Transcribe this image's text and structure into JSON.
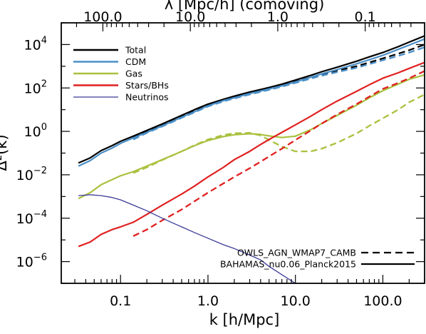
{
  "chart_data": {
    "type": "line",
    "title": "",
    "xlabel": "k [h/Mpc]",
    "ylabel": "Δ²(k)",
    "top_xlabel": "λ [Mpc/h] (comoving)",
    "x_scale": "log",
    "y_scale": "log",
    "xlim": [
      0.021,
      300
    ],
    "ylim": [
      1e-07,
      100000.0
    ],
    "x_ticks": [
      {
        "value": 0.1,
        "label": "0.1"
      },
      {
        "value": 1,
        "label": "1.0"
      },
      {
        "value": 10,
        "label": "10.0"
      },
      {
        "value": 100,
        "label": "100.0"
      }
    ],
    "y_ticks": [
      {
        "value": 1e-06,
        "base": "10",
        "exp": "−6"
      },
      {
        "value": 0.0001,
        "base": "10",
        "exp": "−4"
      },
      {
        "value": 0.01,
        "base": "10",
        "exp": "−2"
      },
      {
        "value": 1,
        "base": "10",
        "exp": "0"
      },
      {
        "value": 100,
        "base": "10",
        "exp": "2"
      },
      {
        "value": 10000,
        "base": "10",
        "exp": "4"
      }
    ],
    "top_ticks": [
      {
        "lambda": 100,
        "label": "100.0"
      },
      {
        "lambda": 10,
        "label": "10.0"
      },
      {
        "lambda": 1,
        "label": "1.0"
      },
      {
        "lambda": 0.1,
        "label": "0.1"
      }
    ],
    "grid": false,
    "legend_species_position": "top-left",
    "legend_linestyle_position": "bottom-right",
    "x": [
      0.033,
      0.045,
      0.06,
      0.08,
      0.1,
      0.14,
      0.2,
      0.3,
      0.5,
      0.7,
      1,
      1.5,
      2,
      3,
      4,
      5,
      7,
      10,
      15,
      20,
      30,
      50,
      70,
      100,
      150,
      200,
      300
    ],
    "series": [
      {
        "name": "Total",
        "color": "#000000",
        "solid": [
          0.035,
          0.06,
          0.13,
          0.22,
          0.35,
          0.6,
          1.1,
          2.2,
          5.5,
          10,
          18,
          30,
          42,
          65,
          85,
          105,
          150,
          230,
          380,
          560,
          900,
          1700,
          2700,
          4300,
          8000,
          13000,
          25000
        ],
        "dashed": [
          null,
          null,
          null,
          null,
          null,
          0.5,
          1.0,
          2.0,
          5.0,
          9,
          16,
          27,
          38,
          58,
          75,
          95,
          130,
          200,
          310,
          430,
          640,
          1000,
          1500,
          2300,
          3800,
          5500,
          10000
        ]
      },
      {
        "name": "CDM",
        "color": "#4a8fc8",
        "solid": [
          0.025,
          0.045,
          0.1,
          0.17,
          0.28,
          0.5,
          0.9,
          1.8,
          4.5,
          8,
          15,
          26,
          35,
          55,
          72,
          90,
          125,
          190,
          310,
          450,
          700,
          1300,
          2000,
          3200,
          6000,
          9500,
          18000
        ],
        "dashed": [
          null,
          null,
          null,
          null,
          null,
          0.42,
          0.85,
          1.7,
          4.2,
          7.5,
          14,
          24,
          33,
          50,
          66,
          82,
          115,
          170,
          270,
          370,
          540,
          850,
          1250,
          1900,
          3000,
          4300,
          7500
        ]
      },
      {
        "name": "Gas",
        "color": "#a9c13e",
        "solid": [
          0.0008,
          0.0015,
          0.0035,
          0.006,
          0.009,
          0.014,
          0.025,
          0.05,
          0.12,
          0.22,
          0.38,
          0.58,
          0.7,
          0.78,
          0.72,
          0.62,
          0.52,
          0.6,
          1.2,
          2.3,
          5.5,
          16,
          35,
          75,
          150,
          250,
          400
        ],
        "dashed": [
          null,
          null,
          null,
          null,
          null,
          0.012,
          0.022,
          0.048,
          0.12,
          0.23,
          0.42,
          0.68,
          0.82,
          0.85,
          0.65,
          0.4,
          0.2,
          0.12,
          0.12,
          0.16,
          0.3,
          0.8,
          1.8,
          4,
          10,
          22,
          50
        ]
      },
      {
        "name": "Stars/BHs",
        "color": "#e02020",
        "solid": [
          5e-06,
          8e-06,
          1.8e-05,
          3e-05,
          4e-05,
          6.5e-05,
          0.00015,
          0.0004,
          0.0013,
          0.003,
          0.008,
          0.022,
          0.05,
          0.12,
          0.25,
          0.42,
          0.9,
          2,
          5,
          10,
          25,
          70,
          140,
          280,
          500,
          800,
          1500
        ],
        "dashed": [
          null,
          null,
          null,
          null,
          null,
          1.5e-05,
          3e-05,
          8e-05,
          0.00025,
          0.0006,
          0.0015,
          0.004,
          0.008,
          0.02,
          0.04,
          0.07,
          0.16,
          0.4,
          1.1,
          2.3,
          6,
          18,
          40,
          90,
          170,
          280,
          600
        ]
      },
      {
        "name": "Neutrinos",
        "color": "#3b3b99",
        "solid": [
          0.0011,
          0.0012,
          0.0011,
          0.0009,
          0.0007,
          0.0004,
          0.00022,
          0.0001,
          4e-05,
          2.2e-05,
          1.2e-05,
          6e-06,
          4e-06,
          2e-06,
          1.2e-06,
          6e-07,
          2.5e-07,
          1e-07,
          null,
          null,
          null,
          null,
          null,
          null,
          null,
          null,
          null
        ],
        "dashed": null
      }
    ],
    "linestyle_legend": [
      {
        "label": "OWLS_AGN_WMAP7_CAMB",
        "style": "dashed"
      },
      {
        "label": "BAHAMAS_nu0.06_Planck2015",
        "style": "solid"
      }
    ]
  }
}
